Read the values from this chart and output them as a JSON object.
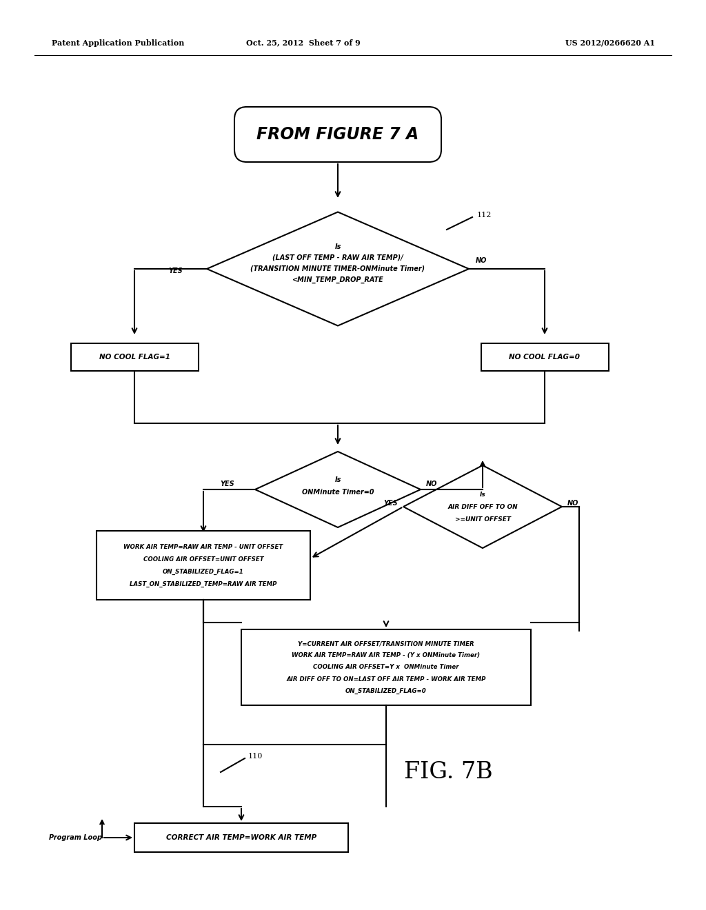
{
  "bg_color": "#ffffff",
  "header_left": "Patent Application Publication",
  "header_center": "Oct. 25, 2012  Sheet 7 of 9",
  "header_right": "US 2012/0266620 A1",
  "figure_label": "FIG. 7B",
  "node_label_112": "112",
  "node_label_110": "110",
  "start_box_text": "FROM FIGURE 7 A",
  "diamond1_line1": "Is",
  "diamond1_line2": "(LAST OFF TEMP - RAW AIR TEMP)/",
  "diamond1_line3": "(TRANSITION MINUTE TIMER-ONMinute Timer)",
  "diamond1_line4": "<MIN_TEMP_DROP_RATE",
  "box_left1_text": "NO COOL FLAG=1",
  "box_right1_text": "NO COOL FLAG=0",
  "diamond2_line1": "Is",
  "diamond2_line2": "ONMinute Timer=0",
  "box_left2_line1": "WORK AIR TEMP=RAW AIR TEMP - UNIT OFFSET",
  "box_left2_line2": "COOLING AIR OFFSET=UNIT OFFSET",
  "box_left2_line3": "ON_STABILIZED_FLAG=1",
  "box_left2_line4": "LAST_ON_STABILIZED_TEMP=RAW AIR TEMP",
  "diamond3_line1": "Is",
  "diamond3_line2": "AIR DIFF OFF TO ON",
  "diamond3_line3": ">=UNIT OFFSET",
  "box_bottom_line1": "Y=CURRENT AIR OFFSET/TRANSITION MINUTE TIMER",
  "box_bottom_line2": "WORK AIR TEMP=RAW AIR TEMP - (Y x ONMinute Timer)",
  "box_bottom_line3": "COOLING AIR OFFSET=Y x  ONMinute Timer",
  "box_bottom_line4": "AIR DIFF OFF TO ON=LAST OFF AIR TEMP - WORK AIR TEMP",
  "box_bottom_line5": "ON_STABILIZED_FLAG=0",
  "box_final_text": "CORRECT AIR TEMP=WORK AIR TEMP",
  "program_loop_text": "Program Loop",
  "yes_label": "YES",
  "no_label": "NO"
}
